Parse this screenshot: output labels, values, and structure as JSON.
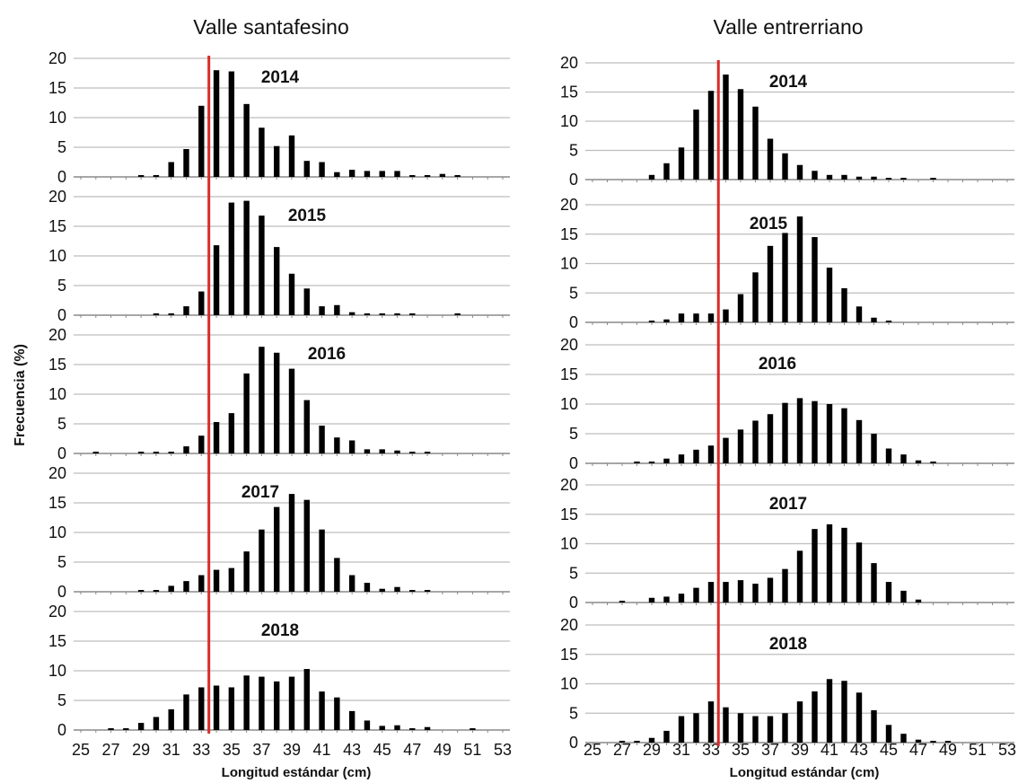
{
  "figure": {
    "ylabel": "Frecuencia (%)",
    "xlabel": "Longitud estándar (cm)",
    "reference_line": {
      "x": 33.5,
      "color": "#d92b2b"
    },
    "bar_color": "#000000",
    "grid_color": "#bdbdbd"
  },
  "chart_data": [
    {
      "type": "bar",
      "title": "Valle santafesino",
      "xlabel": "Longitud estándar (cm)",
      "ylabel": "Frecuencia (%)",
      "ylim": [
        0,
        20
      ],
      "yticks": [
        0,
        5,
        10,
        15,
        20
      ],
      "grid": true,
      "xticks": [
        25,
        27,
        29,
        31,
        33,
        35,
        37,
        39,
        41,
        43,
        45,
        47,
        49,
        51,
        53
      ],
      "categories": [
        25,
        26,
        27,
        28,
        29,
        30,
        31,
        32,
        33,
        34,
        35,
        36,
        37,
        38,
        39,
        40,
        41,
        42,
        43,
        44,
        45,
        46,
        47,
        48,
        49,
        50,
        51,
        52,
        53
      ],
      "series": [
        {
          "name": "2014",
          "values": [
            0,
            0,
            0,
            0,
            0.3,
            0.3,
            2.5,
            4.7,
            12,
            18,
            17.8,
            12.3,
            8.3,
            5.2,
            7,
            2.7,
            2.5,
            0.8,
            1.2,
            1,
            1,
            1,
            0.3,
            0.3,
            0.5,
            0.3,
            0,
            0,
            0
          ]
        },
        {
          "name": "2015",
          "values": [
            0,
            0,
            0,
            0,
            0,
            0.3,
            0.3,
            1.5,
            4,
            11.8,
            19,
            19.3,
            16.8,
            11.5,
            7,
            4.5,
            1.5,
            1.7,
            0.5,
            0.3,
            0.3,
            0.3,
            0.3,
            0,
            0,
            0.3,
            0,
            0,
            0
          ]
        },
        {
          "name": "2016",
          "values": [
            0,
            0.3,
            0,
            0,
            0.3,
            0.3,
            0.3,
            1.2,
            3,
            5.3,
            6.8,
            13.5,
            18,
            17,
            14.3,
            9,
            4.7,
            2.7,
            2.2,
            0.7,
            0.7,
            0.5,
            0.3,
            0.3,
            0,
            0,
            0,
            0,
            0
          ]
        },
        {
          "name": "2017",
          "values": [
            0,
            0,
            0,
            0,
            0.3,
            0.3,
            1,
            1.8,
            2.8,
            3.7,
            4,
            6.8,
            10.5,
            14.3,
            16.5,
            15.5,
            10.5,
            5.7,
            2.8,
            1.5,
            0.5,
            0.8,
            0.3,
            0.3,
            0,
            0,
            0,
            0,
            0
          ]
        },
        {
          "name": "2018",
          "values": [
            0,
            0,
            0.3,
            0.3,
            1.2,
            2.2,
            3.5,
            6,
            7.2,
            7.5,
            7.2,
            9.2,
            9,
            8.2,
            9,
            10.3,
            6.5,
            5.5,
            3.2,
            1.6,
            0.7,
            0.8,
            0.3,
            0.5,
            0,
            0,
            0.3,
            0,
            0
          ]
        }
      ]
    },
    {
      "type": "bar",
      "title": "Valle entrerriano",
      "xlabel": "Longitud estándar (cm)",
      "ylabel": "",
      "ylim": [
        0,
        20
      ],
      "yticks": [
        0,
        5,
        10,
        15,
        20
      ],
      "grid": true,
      "xticks": [
        25,
        27,
        29,
        31,
        33,
        35,
        37,
        39,
        41,
        43,
        45,
        47,
        49,
        51,
        53
      ],
      "categories": [
        25,
        26,
        27,
        28,
        29,
        30,
        31,
        32,
        33,
        34,
        35,
        36,
        37,
        38,
        39,
        40,
        41,
        42,
        43,
        44,
        45,
        46,
        47,
        48,
        49,
        50,
        51,
        52,
        53
      ],
      "series": [
        {
          "name": "2014",
          "values": [
            0,
            0,
            0,
            0,
            0.8,
            2.8,
            5.5,
            12,
            15.2,
            18,
            15.5,
            12.5,
            7,
            4.5,
            2.5,
            1.5,
            0.8,
            0.8,
            0.5,
            0.5,
            0.3,
            0.3,
            0,
            0.3,
            0,
            0,
            0,
            0,
            0
          ]
        },
        {
          "name": "2015",
          "values": [
            0,
            0,
            0,
            0,
            0.3,
            0.5,
            1.5,
            1.5,
            1.5,
            2.2,
            4.8,
            8.5,
            13,
            15.2,
            18,
            14.5,
            9.3,
            5.8,
            2.7,
            0.8,
            0.3,
            0,
            0,
            0,
            0,
            0,
            0,
            0,
            0
          ]
        },
        {
          "name": "2016",
          "values": [
            0,
            0,
            0,
            0.3,
            0.3,
            0.8,
            1.5,
            2.3,
            3,
            4.3,
            5.7,
            7.2,
            8.3,
            10.2,
            11,
            10.5,
            10,
            9.3,
            7.3,
            5,
            2.5,
            1.5,
            0.5,
            0.3,
            0,
            0,
            0,
            0,
            0
          ]
        },
        {
          "name": "2017",
          "values": [
            0,
            0,
            0.3,
            0,
            0.8,
            1,
            1.5,
            2.5,
            3.5,
            3.5,
            3.8,
            3.2,
            4.2,
            5.7,
            8.8,
            12.5,
            13.3,
            12.7,
            10.2,
            6.7,
            3.5,
            2,
            0.5,
            0,
            0,
            0,
            0,
            0,
            0
          ]
        },
        {
          "name": "2018",
          "values": [
            0,
            0,
            0.3,
            0.3,
            0.8,
            2,
            4.5,
            5,
            7,
            6,
            5,
            4.5,
            4.5,
            5,
            7,
            8.7,
            10.8,
            10.5,
            8.5,
            5.5,
            3,
            1.5,
            0.5,
            0.3,
            0.3,
            0,
            0,
            0,
            0
          ]
        }
      ]
    }
  ]
}
